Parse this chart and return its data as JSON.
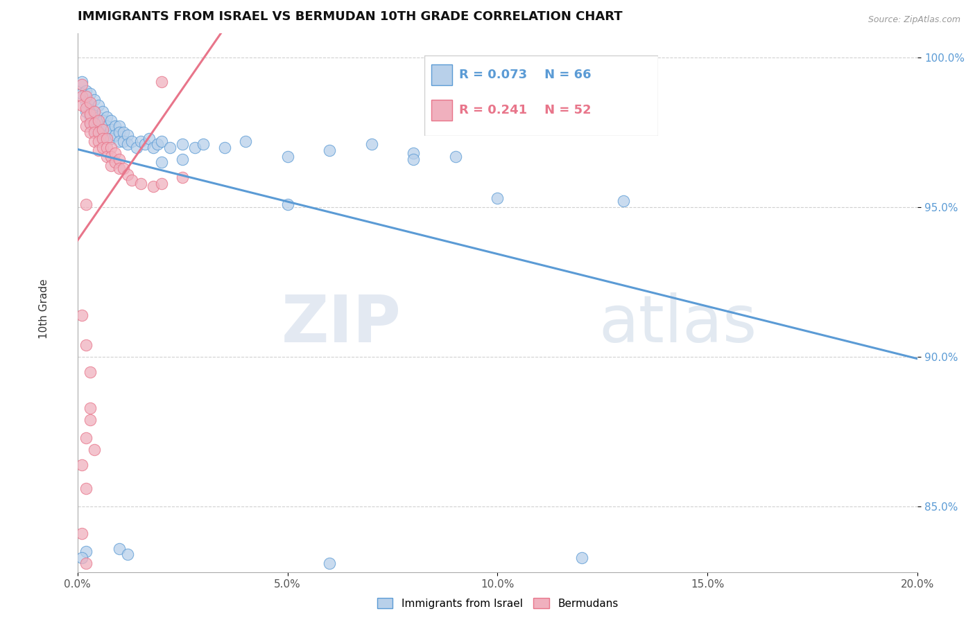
{
  "title": "IMMIGRANTS FROM ISRAEL VS BERMUDAN 10TH GRADE CORRELATION CHART",
  "source": "Source: ZipAtlas.com",
  "ylabel": "10th Grade",
  "xmin": 0.0,
  "xmax": 0.2,
  "ymin": 0.828,
  "ymax": 1.008,
  "yticks": [
    0.85,
    0.9,
    0.95,
    1.0
  ],
  "ytick_labels": [
    "85.0%",
    "90.0%",
    "95.0%",
    "100.0%"
  ],
  "xticks": [
    0.0,
    0.05,
    0.1,
    0.15,
    0.2
  ],
  "xtick_labels": [
    "0.0%",
    "5.0%",
    "10.0%",
    "15.0%",
    "20.0%"
  ],
  "blue_R": 0.073,
  "blue_N": 66,
  "pink_R": 0.241,
  "pink_N": 52,
  "blue_label": "Immigrants from Israel",
  "pink_label": "Bermudans",
  "blue_line_color": "#5b9bd5",
  "pink_line_color": "#e8758a",
  "blue_fill_color": "#b8d0ea",
  "pink_fill_color": "#f0b0be",
  "blue_edge_color": "#5b9bd5",
  "pink_edge_color": "#e8758a",
  "blue_x": [
    0.001,
    0.001,
    0.002,
    0.002,
    0.002,
    0.003,
    0.003,
    0.003,
    0.003,
    0.004,
    0.004,
    0.004,
    0.004,
    0.005,
    0.005,
    0.005,
    0.006,
    0.006,
    0.006,
    0.006,
    0.007,
    0.007,
    0.007,
    0.008,
    0.008,
    0.008,
    0.009,
    0.009,
    0.01,
    0.01,
    0.01,
    0.011,
    0.011,
    0.012,
    0.012,
    0.013,
    0.014,
    0.015,
    0.016,
    0.017,
    0.018,
    0.019,
    0.02,
    0.022,
    0.025,
    0.028,
    0.03,
    0.035,
    0.04,
    0.05,
    0.06,
    0.07,
    0.08,
    0.09,
    0.05,
    0.1,
    0.13,
    0.08,
    0.02,
    0.025,
    0.002,
    0.001,
    0.01,
    0.012,
    0.06,
    0.12
  ],
  "blue_y": [
    0.992,
    0.988,
    0.989,
    0.985,
    0.982,
    0.988,
    0.984,
    0.98,
    0.978,
    0.986,
    0.982,
    0.979,
    0.976,
    0.984,
    0.98,
    0.977,
    0.982,
    0.979,
    0.976,
    0.973,
    0.98,
    0.977,
    0.974,
    0.979,
    0.976,
    0.973,
    0.977,
    0.974,
    0.977,
    0.975,
    0.972,
    0.975,
    0.972,
    0.974,
    0.971,
    0.972,
    0.97,
    0.972,
    0.971,
    0.973,
    0.97,
    0.971,
    0.972,
    0.97,
    0.971,
    0.97,
    0.971,
    0.97,
    0.972,
    0.967,
    0.969,
    0.971,
    0.968,
    0.967,
    0.951,
    0.953,
    0.952,
    0.966,
    0.965,
    0.966,
    0.835,
    0.833,
    0.836,
    0.834,
    0.831,
    0.833
  ],
  "pink_x": [
    0.001,
    0.001,
    0.001,
    0.002,
    0.002,
    0.002,
    0.002,
    0.003,
    0.003,
    0.003,
    0.003,
    0.004,
    0.004,
    0.004,
    0.004,
    0.005,
    0.005,
    0.005,
    0.005,
    0.006,
    0.006,
    0.006,
    0.007,
    0.007,
    0.007,
    0.008,
    0.008,
    0.008,
    0.009,
    0.009,
    0.01,
    0.01,
    0.011,
    0.012,
    0.013,
    0.015,
    0.018,
    0.02,
    0.025,
    0.002,
    0.001,
    0.002,
    0.003,
    0.003,
    0.002,
    0.001,
    0.002,
    0.003,
    0.004,
    0.001,
    0.002,
    0.02
  ],
  "pink_y": [
    0.991,
    0.987,
    0.984,
    0.987,
    0.983,
    0.98,
    0.977,
    0.985,
    0.981,
    0.978,
    0.975,
    0.982,
    0.978,
    0.975,
    0.972,
    0.979,
    0.975,
    0.972,
    0.969,
    0.976,
    0.973,
    0.97,
    0.973,
    0.97,
    0.967,
    0.97,
    0.967,
    0.964,
    0.968,
    0.965,
    0.966,
    0.963,
    0.963,
    0.961,
    0.959,
    0.958,
    0.957,
    0.958,
    0.96,
    0.951,
    0.914,
    0.904,
    0.895,
    0.883,
    0.873,
    0.864,
    0.856,
    0.879,
    0.869,
    0.841,
    0.831,
    0.992
  ],
  "watermark_zip": "ZIP",
  "watermark_atlas": "atlas",
  "background_color": "#ffffff",
  "grid_color": "#d0d0d0",
  "legend_box_color": "#ffffff",
  "legend_border_color": "#cccccc"
}
